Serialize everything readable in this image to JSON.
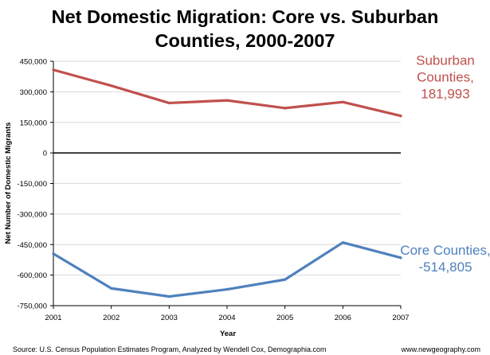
{
  "chart_data": {
    "type": "line",
    "title": "Net Domestic Migration:  Core vs. Suburban Counties, 2000-2007",
    "title_lines": [
      "Net Domestic Migration:  Core vs. Suburban",
      "Counties, 2000-2007"
    ],
    "xlabel": "Year",
    "ylabel": "Net Number of Domestic Migrants",
    "x": [
      "2001",
      "2002",
      "2003",
      "2004",
      "2005",
      "2006",
      "2007"
    ],
    "ylim": [
      -750000,
      450000
    ],
    "yticks": [
      450000,
      300000,
      150000,
      0,
      -150000,
      -300000,
      -450000,
      -600000,
      -750000
    ],
    "ytick_labels": [
      "450,000",
      "300,000",
      "150,000",
      "0",
      "-150,000",
      "-300,000",
      "-450,000",
      "-600,000",
      "-750,000"
    ],
    "grid": "horizontal",
    "series": [
      {
        "name": "Suburban Counties",
        "color": "#c0504d",
        "values": [
          408000,
          330000,
          245000,
          258000,
          220000,
          250000,
          181993
        ],
        "annotation_lines": [
          "Suburban",
          "Counties,",
          "181,993"
        ]
      },
      {
        "name": "Core Counties",
        "color": "#4f81bd",
        "values": [
          -495000,
          -665000,
          -705000,
          -670000,
          -622000,
          -440000,
          -514805
        ],
        "annotation_lines": [
          "Core Counties,",
          "-514,805"
        ]
      }
    ],
    "source": "Source: U.S. Census Population Estimates Program, Analyzed by Wendell Cox, Demographia.com",
    "credit": "www.newgeography.com"
  }
}
